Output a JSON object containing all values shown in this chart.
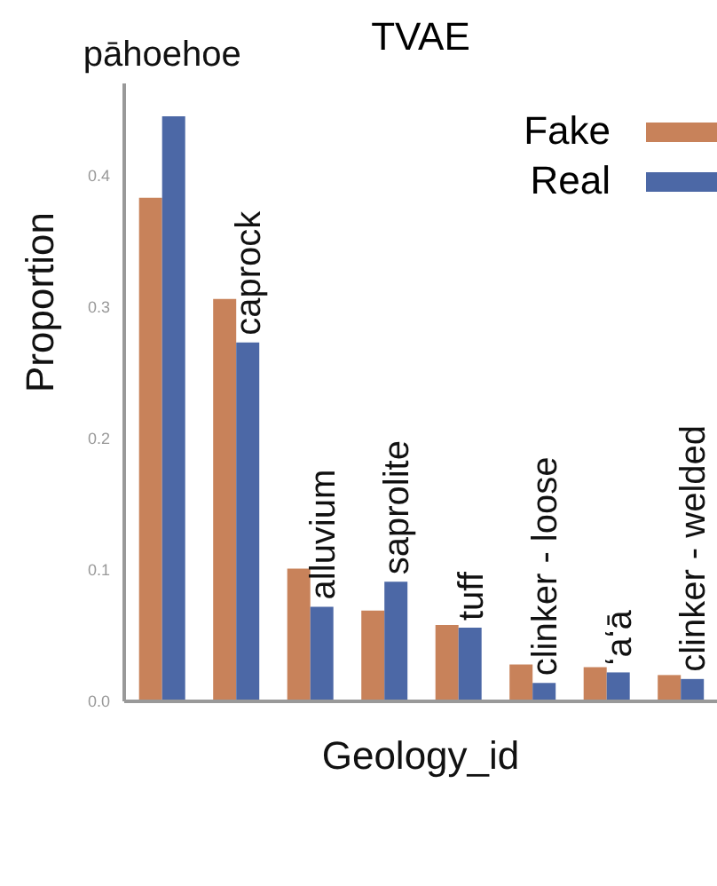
{
  "chart_data": {
    "type": "bar",
    "title": "TVAE",
    "xlabel": "Geology_id",
    "ylabel": "Proportion",
    "categories": [
      "pāhoehoe",
      "caprock",
      "alluvium",
      "saprolite",
      "tuff",
      "clinker - loose",
      "ʻaʻā",
      "clinker - welded"
    ],
    "series": [
      {
        "name": "Fake",
        "color": "#c8825a",
        "values": [
          0.383,
          0.306,
          0.101,
          0.069,
          0.058,
          0.028,
          0.026,
          0.02
        ]
      },
      {
        "name": "Real",
        "color": "#4c68a6",
        "values": [
          0.445,
          0.273,
          0.072,
          0.091,
          0.056,
          0.014,
          0.022,
          0.017
        ]
      }
    ],
    "ylim": [
      0,
      0.47
    ],
    "yticks": [
      {
        "value": 0,
        "label": "0.0"
      },
      {
        "value": 0.1,
        "label": "0.1"
      },
      {
        "value": 0.2,
        "label": "0.2"
      },
      {
        "value": 0.3,
        "label": "0.3"
      },
      {
        "value": 0.4,
        "label": "0.4"
      }
    ],
    "grid": false,
    "legend": "top right"
  }
}
